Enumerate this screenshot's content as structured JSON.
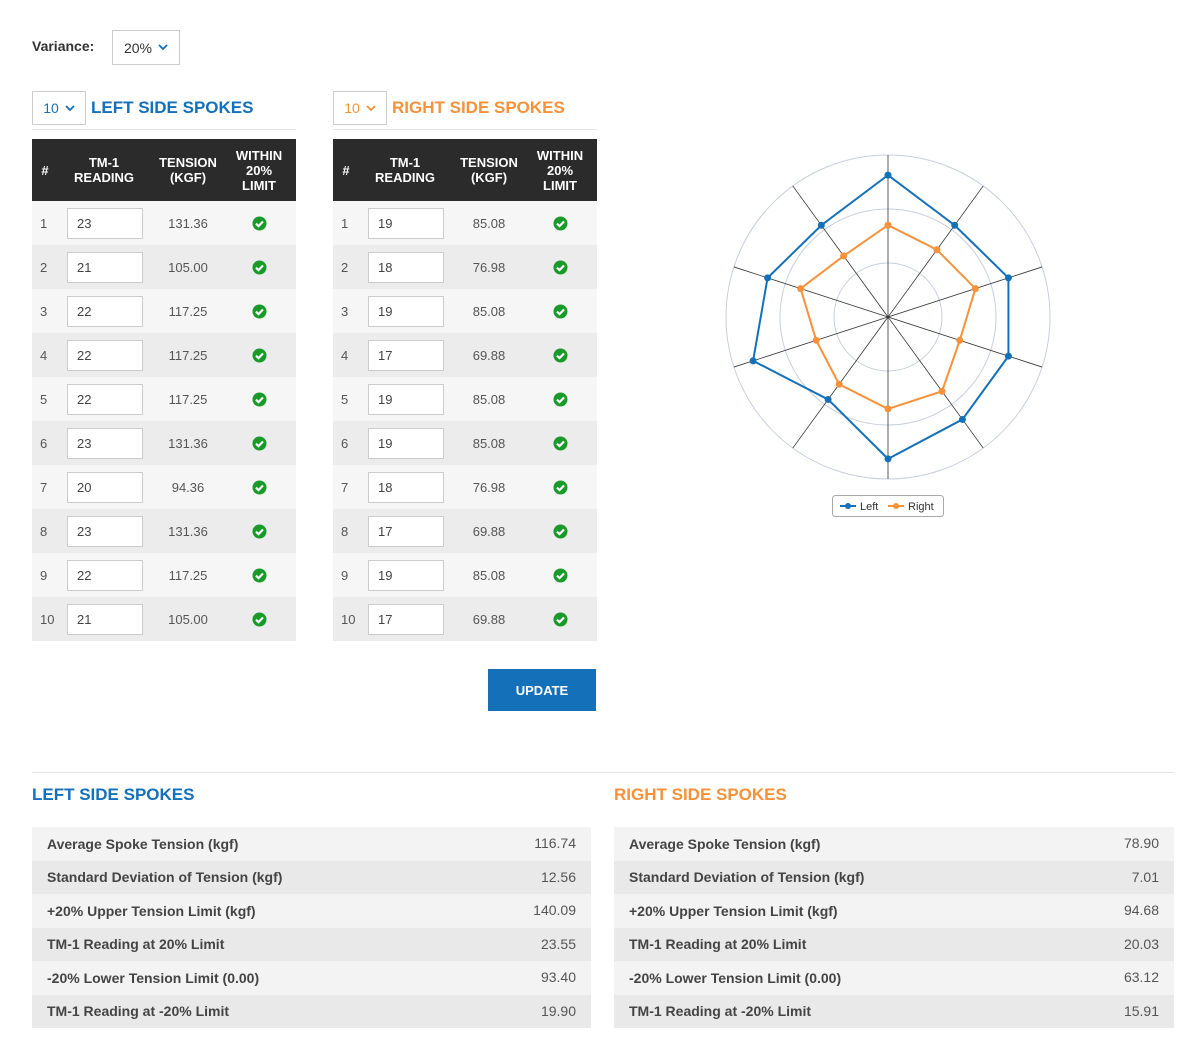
{
  "variance": {
    "label": "Variance:",
    "value": "20%"
  },
  "left": {
    "count": "10",
    "title": "LEFT SIDE SPOKES",
    "headers": [
      "#",
      "TM-1 READING",
      "TENSION (KGF)",
      "WITHIN 20% LIMIT"
    ],
    "numbers": [
      "1",
      "2",
      "3",
      "4",
      "5",
      "6",
      "7",
      "8",
      "9",
      "10"
    ],
    "readings": [
      "23",
      "21",
      "22",
      "22",
      "22",
      "23",
      "20",
      "23",
      "22",
      "21"
    ]
  },
  "right": {
    "count": "10",
    "title": "RIGHT SIDE SPOKES",
    "headers": [
      "#",
      "TM-1 READING",
      "TENSION (KGF)",
      "WITHIN 20% LIMIT"
    ],
    "numbers": [
      "1",
      "2",
      "3",
      "4",
      "5",
      "6",
      "7",
      "8",
      "9",
      "10"
    ],
    "readings": [
      "19",
      "18",
      "19",
      "17",
      "19",
      "19",
      "18",
      "17",
      "19",
      "17"
    ]
  },
  "update": "UPDATE",
  "chart_data": {
    "type": "radar",
    "rlim": [
      0,
      150
    ],
    "rticks": [
      50,
      100,
      150
    ],
    "series": [
      {
        "name": "Left",
        "color": "#1470b8",
        "values": [
          131.36,
          105,
          117.25,
          117.25,
          117.25,
          131.36,
          94.36,
          131.36,
          117.25,
          105
        ],
        "value_labels": [
          "131.36",
          "105.00",
          "117.25",
          "117.25",
          "117.25",
          "131.36",
          "94.36",
          "131.36",
          "117.25",
          "105.00"
        ]
      },
      {
        "name": "Right",
        "color": "#f7923a",
        "values": [
          85.08,
          76.98,
          85.08,
          69.88,
          85.08,
          85.08,
          76.98,
          69.88,
          85.08,
          69.88
        ],
        "value_labels": [
          "85.08",
          "76.98",
          "85.08",
          "69.88",
          "85.08",
          "85.08",
          "76.98",
          "69.88",
          "85.08",
          "69.88"
        ]
      }
    ]
  },
  "summary": {
    "left": {
      "title": "LEFT SIDE SPOKES",
      "rows": [
        [
          "Average Spoke Tension (kgf)",
          "116.74"
        ],
        [
          "Standard Deviation of Tension (kgf)",
          "12.56"
        ],
        [
          "+20% Upper Tension Limit (kgf)",
          "140.09"
        ],
        [
          "TM-1 Reading at 20% Limit",
          "23.55"
        ],
        [
          "-20% Lower Tension Limit (0.00)",
          "93.40"
        ],
        [
          "TM-1 Reading at -20% Limit",
          "19.90"
        ]
      ]
    },
    "right": {
      "title": "RIGHT SIDE SPOKES",
      "rows": [
        [
          "Average Spoke Tension (kgf)",
          "78.90"
        ],
        [
          "Standard Deviation of Tension (kgf)",
          "7.01"
        ],
        [
          "+20% Upper Tension Limit (kgf)",
          "94.68"
        ],
        [
          "TM-1 Reading at 20% Limit",
          "20.03"
        ],
        [
          "-20% Lower Tension Limit (0.00)",
          "63.12"
        ],
        [
          "TM-1 Reading at -20% Limit",
          "15.91"
        ]
      ]
    }
  }
}
